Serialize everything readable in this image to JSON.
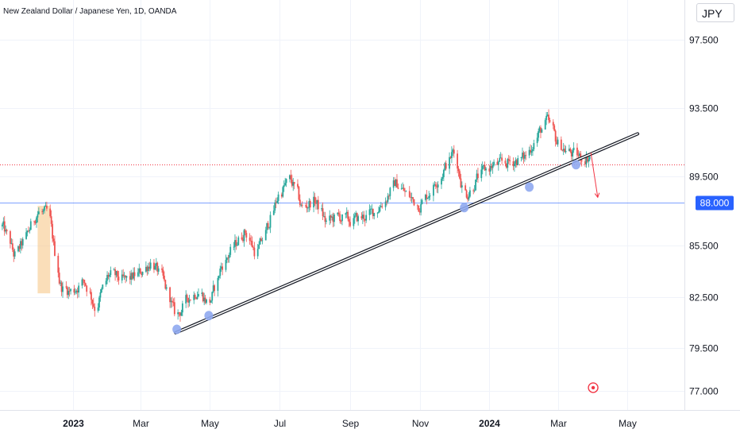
{
  "header": {
    "symbol_title": "New Zealand Dollar / Japanese Yen, 1D, OANDA",
    "currency": "JPY"
  },
  "chart_data": {
    "type": "candlestick",
    "symbol": "NZDJPY",
    "interval": "1D",
    "source": "OANDA",
    "y_axis": {
      "ticks": [
        "97.500",
        "93.500",
        "89.500",
        "85.500",
        "82.500",
        "79.500",
        "77.000"
      ],
      "range": [
        75.9,
        99.8
      ]
    },
    "x_axis": {
      "ticks": [
        {
          "label": "2023",
          "date": "2023-01-01",
          "bold": true
        },
        {
          "label": "Mar",
          "date": "2023-03-01",
          "bold": false
        },
        {
          "label": "May",
          "date": "2023-05-01",
          "bold": false
        },
        {
          "label": "Jul",
          "date": "2023-07-01",
          "bold": false
        },
        {
          "label": "Sep",
          "date": "2023-09-01",
          "bold": false
        },
        {
          "label": "Nov",
          "date": "2023-11-01",
          "bold": false
        },
        {
          "label": "2024",
          "date": "2024-01-01",
          "bold": true
        },
        {
          "label": "Mar",
          "date": "2024-03-01",
          "bold": false
        },
        {
          "label": "May",
          "date": "2024-05-01",
          "bold": false
        }
      ],
      "range": [
        "2022-10-29",
        "2024-06-20"
      ]
    },
    "colors": {
      "up": "#26a69a",
      "down": "#ef5350",
      "trendline": "#131722",
      "horizontal_line": "#2962ff",
      "dotted_line": "#f23645",
      "price_tag": "#2962ff",
      "touch_points": "#8fa8f0",
      "highlight_box": "#f7c88a",
      "arrow": "#f23645"
    },
    "price_line": {
      "value": "88.000",
      "price": 88.0
    },
    "dotted_price_line": 90.2,
    "trendline": {
      "start": [
        "2023-04-01",
        80.4
      ],
      "end": [
        "2024-05-10",
        92.0
      ]
    },
    "touch_points": [
      {
        "date": "2023-04-02",
        "price": 80.6
      },
      {
        "date": "2023-04-30",
        "price": 81.4
      },
      {
        "date": "2023-12-10",
        "price": 87.7
      },
      {
        "date": "2024-02-05",
        "price": 88.9
      },
      {
        "date": "2024-03-17",
        "price": 90.2
      }
    ],
    "highlight_box": {
      "start": "2022-12-01",
      "end": "2022-12-12",
      "high": 87.8,
      "low": 82.7
    },
    "arrow": {
      "from": [
        "2024-03-30",
        90.9
      ],
      "to": [
        "2024-04-05",
        88.3
      ]
    },
    "target_marker": {
      "date": "2024-04-01",
      "price": 77.2
    },
    "path_points": [
      [
        "2022-10-31",
        86.6
      ],
      [
        "2022-11-10",
        84.8
      ],
      [
        "2022-11-20",
        86.0
      ],
      [
        "2022-11-30",
        87.5
      ],
      [
        "2022-12-10",
        87.3
      ],
      [
        "2022-12-20",
        83.0
      ],
      [
        "2022-12-31",
        82.8
      ],
      [
        "2023-01-10",
        83.5
      ],
      [
        "2023-01-20",
        81.8
      ],
      [
        "2023-01-31",
        83.8
      ],
      [
        "2023-02-15",
        83.4
      ],
      [
        "2023-02-28",
        83.9
      ],
      [
        "2023-03-10",
        84.6
      ],
      [
        "2023-03-20",
        83.4
      ],
      [
        "2023-04-01",
        81.2
      ],
      [
        "2023-04-10",
        82.4
      ],
      [
        "2023-04-20",
        82.9
      ],
      [
        "2023-04-30",
        82.0
      ],
      [
        "2023-05-10",
        84.3
      ],
      [
        "2023-05-20",
        85.3
      ],
      [
        "2023-05-31",
        86.4
      ],
      [
        "2023-06-10",
        84.9
      ],
      [
        "2023-06-20",
        86.7
      ],
      [
        "2023-06-30",
        88.6
      ],
      [
        "2023-07-10",
        89.4
      ],
      [
        "2023-07-20",
        87.6
      ],
      [
        "2023-07-31",
        88.2
      ],
      [
        "2023-08-10",
        86.8
      ],
      [
        "2023-08-20",
        87.2
      ],
      [
        "2023-08-31",
        86.9
      ],
      [
        "2023-09-10",
        87.1
      ],
      [
        "2023-09-20",
        87.4
      ],
      [
        "2023-09-30",
        88.1
      ],
      [
        "2023-10-10",
        89.2
      ],
      [
        "2023-10-20",
        88.4
      ],
      [
        "2023-10-31",
        87.8
      ],
      [
        "2023-11-10",
        88.8
      ],
      [
        "2023-11-20",
        89.8
      ],
      [
        "2023-11-30",
        91.0
      ],
      [
        "2023-12-10",
        88.2
      ],
      [
        "2023-12-20",
        89.4
      ],
      [
        "2023-12-31",
        90.1
      ],
      [
        "2024-01-10",
        90.2
      ],
      [
        "2024-01-20",
        90.4
      ],
      [
        "2024-01-31",
        90.6
      ],
      [
        "2024-02-10",
        91.8
      ],
      [
        "2024-02-20",
        92.8
      ],
      [
        "2024-02-29",
        91.4
      ],
      [
        "2024-03-10",
        90.9
      ],
      [
        "2024-03-20",
        90.6
      ],
      [
        "2024-03-30",
        90.7
      ]
    ]
  }
}
